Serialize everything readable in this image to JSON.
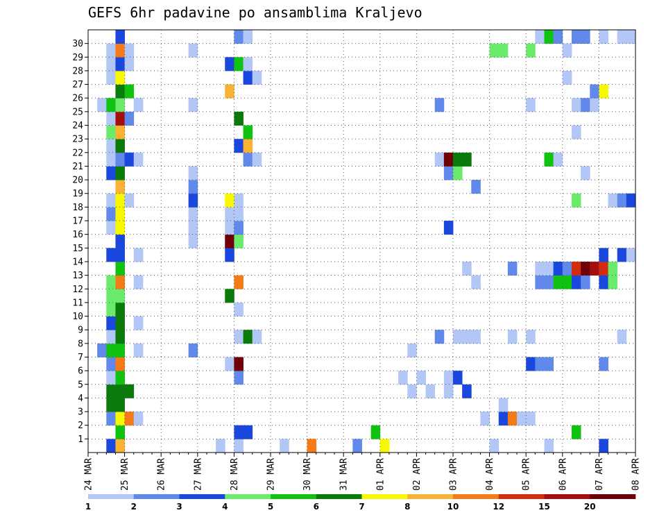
{
  "chart_data": {
    "type": "heatmap",
    "title": "GEFS 6hr padavine po ansamblima Kraljevo",
    "xlabel": "",
    "ylabel": "",
    "x_tick_labels": [
      "24 MAR",
      "25 MAR",
      "26 MAR",
      "27 MAR",
      "28 MAR",
      "29 MAR",
      "30 MAR",
      "31 MAR",
      "01 APR",
      "02 APR",
      "03 APR",
      "04 APR",
      "05 APR",
      "06 APR",
      "07 APR",
      "08 APR"
    ],
    "y_tick_labels": [
      "1",
      "2",
      "3",
      "4",
      "5",
      "6",
      "7",
      "8",
      "9",
      "10",
      "11",
      "12",
      "13",
      "14",
      "15",
      "16",
      "17",
      "18",
      "19",
      "20",
      "21",
      "22",
      "23",
      "24",
      "25",
      "26",
      "27",
      "28",
      "29",
      "30"
    ],
    "time_steps_per_day": 4,
    "members": 31,
    "grid": true,
    "colorbar": {
      "labels": [
        "1",
        "2",
        "3",
        "4",
        "5",
        "6",
        "7",
        "8",
        "10",
        "12",
        "15",
        "20"
      ],
      "levels": [
        1,
        2,
        3,
        4,
        5,
        6,
        7,
        8,
        10,
        12,
        15,
        20
      ],
      "colors": [
        "#b3c7f7",
        "#6189eb",
        "#1a47de",
        "#6beb6b",
        "#10c310",
        "#0a7a0a",
        "#f8f800",
        "#f9b233",
        "#f57a18",
        "#d42c0e",
        "#a60d0d",
        "#6e0008"
      ]
    },
    "cells": [
      [
        0,
        2,
        2
      ],
      [
        0,
        3,
        7
      ],
      [
        0,
        14,
        0
      ],
      [
        0,
        16,
        0
      ],
      [
        0,
        21,
        0
      ],
      [
        0,
        24,
        8
      ],
      [
        0,
        29,
        1
      ],
      [
        0,
        32,
        6
      ],
      [
        0,
        44,
        0
      ],
      [
        0,
        50,
        0
      ],
      [
        0,
        56,
        2
      ],
      [
        1,
        3,
        4
      ],
      [
        1,
        16,
        2
      ],
      [
        1,
        17,
        2
      ],
      [
        1,
        31,
        4
      ],
      [
        1,
        53,
        4
      ],
      [
        2,
        2,
        1
      ],
      [
        2,
        3,
        6
      ],
      [
        2,
        4,
        8
      ],
      [
        2,
        5,
        0
      ],
      [
        2,
        43,
        0
      ],
      [
        2,
        45,
        2
      ],
      [
        2,
        46,
        8
      ],
      [
        2,
        47,
        0
      ],
      [
        2,
        48,
        0
      ],
      [
        3,
        2,
        5
      ],
      [
        3,
        3,
        5
      ],
      [
        3,
        45,
        0
      ],
      [
        4,
        2,
        5
      ],
      [
        4,
        3,
        5
      ],
      [
        4,
        4,
        5
      ],
      [
        4,
        35,
        0
      ],
      [
        4,
        37,
        0
      ],
      [
        4,
        39,
        0
      ],
      [
        4,
        41,
        2
      ],
      [
        5,
        2,
        0
      ],
      [
        5,
        3,
        4
      ],
      [
        5,
        16,
        1
      ],
      [
        5,
        34,
        0
      ],
      [
        5,
        36,
        0
      ],
      [
        5,
        39,
        0
      ],
      [
        5,
        40,
        2
      ],
      [
        6,
        2,
        1
      ],
      [
        6,
        3,
        8
      ],
      [
        6,
        15,
        0
      ],
      [
        6,
        16,
        11
      ],
      [
        6,
        48,
        2
      ],
      [
        6,
        49,
        1
      ],
      [
        6,
        50,
        1
      ],
      [
        6,
        56,
        1
      ],
      [
        7,
        1,
        1
      ],
      [
        7,
        2,
        4
      ],
      [
        7,
        3,
        4
      ],
      [
        7,
        5,
        0
      ],
      [
        7,
        11,
        1
      ],
      [
        7,
        35,
        0
      ],
      [
        8,
        2,
        0
      ],
      [
        8,
        3,
        5
      ],
      [
        8,
        16,
        0
      ],
      [
        8,
        17,
        5
      ],
      [
        8,
        18,
        0
      ],
      [
        8,
        38,
        1
      ],
      [
        8,
        40,
        0
      ],
      [
        8,
        41,
        0
      ],
      [
        8,
        42,
        0
      ],
      [
        8,
        46,
        0
      ],
      [
        8,
        48,
        0
      ],
      [
        8,
        58,
        0
      ],
      [
        9,
        2,
        2
      ],
      [
        9,
        3,
        5
      ],
      [
        9,
        5,
        0
      ],
      [
        10,
        2,
        3
      ],
      [
        10,
        3,
        5
      ],
      [
        10,
        16,
        0
      ],
      [
        11,
        2,
        3
      ],
      [
        11,
        3,
        3
      ],
      [
        11,
        15,
        5
      ],
      [
        12,
        2,
        3
      ],
      [
        12,
        3,
        8
      ],
      [
        12,
        5,
        0
      ],
      [
        12,
        16,
        8
      ],
      [
        12,
        42,
        0
      ],
      [
        12,
        49,
        1
      ],
      [
        12,
        50,
        1
      ],
      [
        12,
        51,
        4
      ],
      [
        12,
        52,
        4
      ],
      [
        12,
        53,
        2
      ],
      [
        12,
        54,
        1
      ],
      [
        12,
        56,
        2
      ],
      [
        12,
        57,
        3
      ],
      [
        13,
        3,
        4
      ],
      [
        13,
        41,
        0
      ],
      [
        13,
        46,
        1
      ],
      [
        13,
        49,
        0
      ],
      [
        13,
        50,
        0
      ],
      [
        13,
        51,
        2
      ],
      [
        13,
        52,
        1
      ],
      [
        13,
        53,
        9
      ],
      [
        13,
        54,
        11
      ],
      [
        13,
        55,
        10
      ],
      [
        13,
        56,
        9
      ],
      [
        13,
        57,
        3
      ],
      [
        14,
        2,
        2
      ],
      [
        14,
        3,
        2
      ],
      [
        14,
        5,
        0
      ],
      [
        14,
        15,
        2
      ],
      [
        14,
        56,
        2
      ],
      [
        14,
        58,
        2
      ],
      [
        14,
        59,
        0
      ],
      [
        15,
        3,
        2
      ],
      [
        15,
        11,
        0
      ],
      [
        15,
        15,
        11
      ],
      [
        15,
        16,
        3
      ],
      [
        16,
        2,
        0
      ],
      [
        16,
        3,
        6
      ],
      [
        16,
        11,
        0
      ],
      [
        16,
        15,
        0
      ],
      [
        16,
        16,
        1
      ],
      [
        16,
        39,
        2
      ],
      [
        17,
        2,
        1
      ],
      [
        17,
        3,
        6
      ],
      [
        17,
        11,
        0
      ],
      [
        17,
        15,
        0
      ],
      [
        17,
        16,
        0
      ],
      [
        18,
        2,
        0
      ],
      [
        18,
        3,
        6
      ],
      [
        18,
        4,
        0
      ],
      [
        18,
        11,
        2
      ],
      [
        18,
        15,
        6
      ],
      [
        18,
        16,
        0
      ],
      [
        18,
        53,
        3
      ],
      [
        18,
        57,
        0
      ],
      [
        18,
        58,
        1
      ],
      [
        18,
        59,
        2
      ],
      [
        19,
        3,
        7
      ],
      [
        19,
        11,
        1
      ],
      [
        19,
        42,
        1
      ],
      [
        20,
        2,
        2
      ],
      [
        20,
        3,
        5
      ],
      [
        20,
        11,
        0
      ],
      [
        20,
        39,
        1
      ],
      [
        20,
        40,
        3
      ],
      [
        20,
        54,
        0
      ],
      [
        21,
        2,
        0
      ],
      [
        21,
        3,
        1
      ],
      [
        21,
        4,
        2
      ],
      [
        21,
        5,
        0
      ],
      [
        21,
        17,
        1
      ],
      [
        21,
        18,
        0
      ],
      [
        21,
        38,
        0
      ],
      [
        21,
        39,
        11
      ],
      [
        21,
        40,
        5
      ],
      [
        21,
        41,
        5
      ],
      [
        21,
        50,
        4
      ],
      [
        21,
        51,
        0
      ],
      [
        22,
        2,
        0
      ],
      [
        22,
        3,
        5
      ],
      [
        22,
        16,
        2
      ],
      [
        22,
        17,
        7
      ],
      [
        23,
        2,
        3
      ],
      [
        23,
        3,
        7
      ],
      [
        23,
        17,
        4
      ],
      [
        23,
        53,
        0
      ],
      [
        24,
        2,
        0
      ],
      [
        24,
        3,
        10
      ],
      [
        24,
        4,
        1
      ],
      [
        24,
        16,
        5
      ],
      [
        25,
        1,
        0
      ],
      [
        25,
        2,
        4
      ],
      [
        25,
        3,
        3
      ],
      [
        25,
        5,
        0
      ],
      [
        25,
        11,
        0
      ],
      [
        25,
        38,
        1
      ],
      [
        25,
        48,
        0
      ],
      [
        25,
        53,
        0
      ],
      [
        25,
        54,
        1
      ],
      [
        25,
        55,
        0
      ],
      [
        26,
        3,
        5
      ],
      [
        26,
        4,
        4
      ],
      [
        26,
        15,
        7
      ],
      [
        26,
        55,
        1
      ],
      [
        26,
        56,
        6
      ],
      [
        27,
        2,
        0
      ],
      [
        27,
        3,
        6
      ],
      [
        27,
        17,
        2
      ],
      [
        27,
        18,
        0
      ],
      [
        27,
        52,
        0
      ],
      [
        28,
        2,
        0
      ],
      [
        28,
        3,
        2
      ],
      [
        28,
        4,
        0
      ],
      [
        28,
        15,
        2
      ],
      [
        28,
        16,
        4
      ],
      [
        28,
        17,
        0
      ],
      [
        29,
        2,
        0
      ],
      [
        29,
        3,
        8
      ],
      [
        29,
        4,
        0
      ],
      [
        29,
        11,
        0
      ],
      [
        29,
        44,
        3
      ],
      [
        29,
        45,
        3
      ],
      [
        29,
        48,
        3
      ],
      [
        29,
        52,
        0
      ],
      [
        30,
        3,
        2
      ],
      [
        30,
        16,
        1
      ],
      [
        30,
        17,
        0
      ],
      [
        30,
        49,
        0
      ],
      [
        30,
        50,
        4
      ],
      [
        30,
        51,
        1
      ],
      [
        30,
        53,
        1
      ],
      [
        30,
        54,
        1
      ],
      [
        30,
        56,
        0
      ],
      [
        30,
        58,
        0
      ],
      [
        30,
        59,
        0
      ]
    ]
  }
}
